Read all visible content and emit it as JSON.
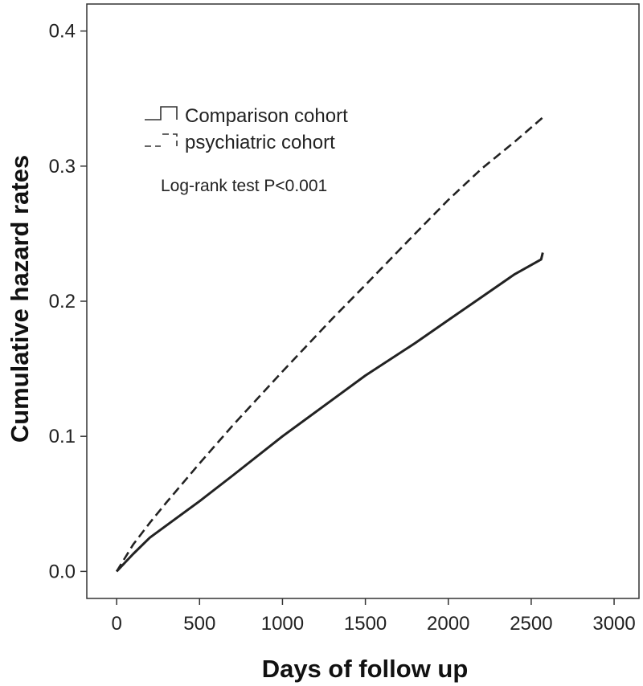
{
  "chart_data": {
    "type": "line",
    "title": "",
    "xlabel": "Days of follow up",
    "ylabel": "Cumulative hazard rates",
    "xlim": [
      -180,
      3150
    ],
    "ylim": [
      -0.02,
      0.42
    ],
    "xticks": [
      0,
      500,
      1000,
      1500,
      2000,
      2500,
      3000
    ],
    "yticks": [
      0.0,
      0.1,
      0.2,
      0.3,
      0.4
    ],
    "xtick_labels": [
      "0",
      "500",
      "1000",
      "1500",
      "2000",
      "2500",
      "3000"
    ],
    "ytick_labels": [
      "0.0",
      "0.1",
      "0.2",
      "0.3",
      "0.4"
    ],
    "grid": false,
    "legend": {
      "placement": "top-left",
      "entries": [
        {
          "label": "Comparison cohort",
          "style": "solid"
        },
        {
          "label": "psychiatric cohort",
          "style": "dashed"
        }
      ]
    },
    "annotation": "Log-rank test P<0.001",
    "series": [
      {
        "name": "Comparison cohort",
        "style": "solid",
        "color": "#222222",
        "x": [
          0,
          100,
          200,
          300,
          500,
          700,
          1000,
          1300,
          1500,
          1800,
          2000,
          2200,
          2400,
          2560,
          2570
        ],
        "y": [
          0.0,
          0.013,
          0.025,
          0.034,
          0.052,
          0.071,
          0.1,
          0.127,
          0.145,
          0.169,
          0.186,
          0.203,
          0.22,
          0.231,
          0.236
        ]
      },
      {
        "name": "psychiatric cohort",
        "style": "dashed",
        "color": "#222222",
        "x": [
          0,
          50,
          100,
          200,
          300,
          500,
          700,
          1000,
          1300,
          1500,
          1800,
          2000,
          2200,
          2400,
          2570
        ],
        "y": [
          0.0,
          0.01,
          0.02,
          0.036,
          0.051,
          0.08,
          0.108,
          0.148,
          0.187,
          0.212,
          0.25,
          0.275,
          0.298,
          0.318,
          0.336
        ]
      }
    ]
  }
}
